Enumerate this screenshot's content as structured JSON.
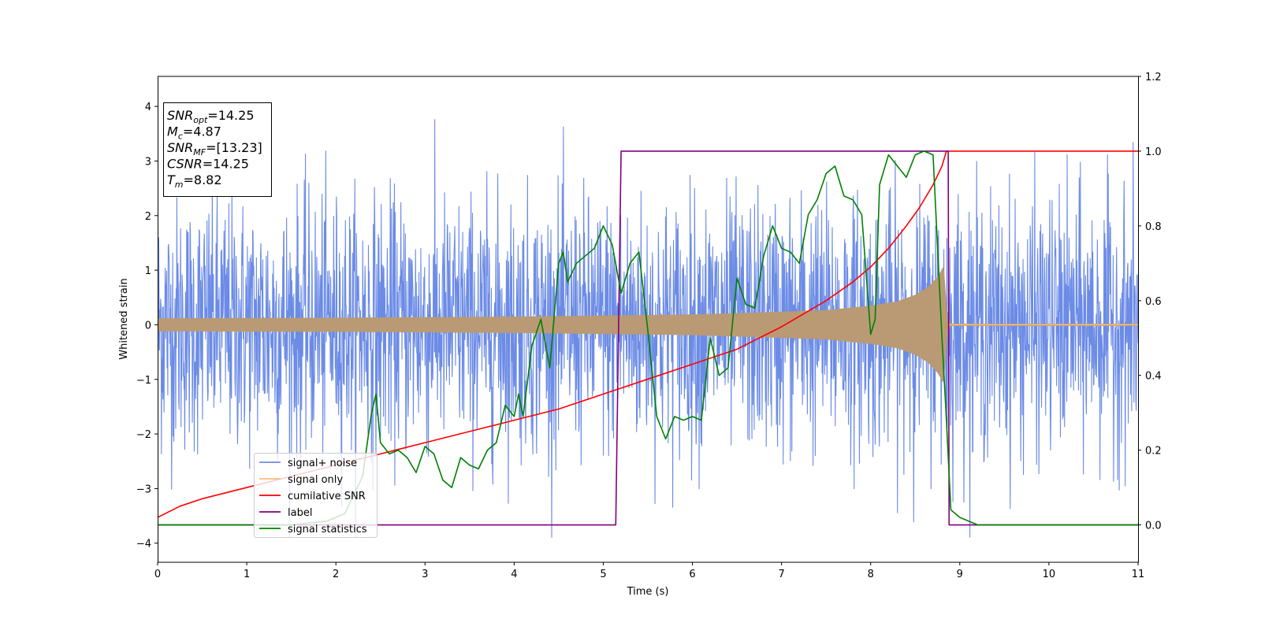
{
  "chart_data": {
    "type": "line",
    "title": "",
    "xlabel": "Time (s)",
    "ylabel": "Whitened strain",
    "xlim": [
      0,
      11
    ],
    "ylim": [
      -4.35,
      4.55
    ],
    "y2lim": [
      -0.1,
      1.2
    ],
    "x_ticks": [
      "0",
      "1",
      "2",
      "3",
      "4",
      "5",
      "6",
      "7",
      "8",
      "9",
      "10",
      "11"
    ],
    "y_ticks": [
      "−4",
      "−3",
      "−2",
      "−1",
      "0",
      "1",
      "2",
      "3",
      "4"
    ],
    "y2_ticks": [
      "0.0",
      "0.2",
      "0.4",
      "0.6",
      "0.8",
      "1.0",
      "1.2"
    ],
    "grid": false,
    "legend_position": "lower-left",
    "info_box": {
      "position": "upper-left",
      "lines": [
        {
          "var": "SNR",
          "sub": "opt",
          "value": "=14.25"
        },
        {
          "var": "M",
          "sub": "c",
          "value": "=4.87"
        },
        {
          "var": "SNR",
          "sub": "MF",
          "value": "=[13.23]"
        },
        {
          "var": "CSNR",
          "sub": "",
          "value": "=14.25"
        },
        {
          "var": "T",
          "sub": "m",
          "value": "=8.82"
        }
      ]
    },
    "series": [
      {
        "name": "signal+ noise",
        "color": "#6b8be6",
        "axis": "left",
        "kind": "noise",
        "amplitude_sigma": 1.0,
        "peak_max": 4.15,
        "peak_min": -3.9
      },
      {
        "name": "signal only",
        "color": "#ffbb78",
        "axis": "left",
        "kind": "chirp",
        "merger_time": 8.82,
        "envelope": {
          "x": [
            0,
            2,
            4,
            6,
            7,
            7.5,
            8,
            8.3,
            8.5,
            8.65,
            8.75,
            8.82,
            8.86,
            8.9,
            11
          ],
          "y": [
            0.12,
            0.13,
            0.15,
            0.19,
            0.24,
            0.27,
            0.35,
            0.43,
            0.55,
            0.7,
            0.88,
            1.08,
            0.2,
            0.02,
            0.02
          ]
        }
      },
      {
        "name": "cumilative SNR",
        "color": "#ff0000",
        "axis": "right",
        "x": [
          0,
          0.25,
          0.5,
          1,
          1.5,
          2,
          2.5,
          3,
          3.5,
          4,
          4.5,
          5,
          5.5,
          6,
          6.5,
          7,
          7.5,
          7.8,
          8,
          8.2,
          8.4,
          8.55,
          8.7,
          8.8,
          8.85,
          9,
          10,
          11
        ],
        "y": [
          0.02,
          0.05,
          0.07,
          0.1,
          0.13,
          0.16,
          0.19,
          0.22,
          0.25,
          0.28,
          0.31,
          0.35,
          0.39,
          0.43,
          0.47,
          0.53,
          0.6,
          0.65,
          0.69,
          0.74,
          0.8,
          0.85,
          0.91,
          0.96,
          1.0,
          1.0,
          1.0,
          1.0
        ]
      },
      {
        "name": "label",
        "color": "#800080",
        "axis": "right",
        "x": [
          0,
          5.14,
          5.2,
          8.87,
          8.88,
          11
        ],
        "y": [
          0,
          0,
          1,
          1,
          0,
          0
        ]
      },
      {
        "name": "signal statistics",
        "color": "#008000",
        "axis": "right",
        "x": [
          0,
          1.5,
          1.9,
          2.1,
          2.3,
          2.4,
          2.45,
          2.5,
          2.6,
          2.7,
          2.8,
          2.9,
          3.0,
          3.1,
          3.2,
          3.3,
          3.4,
          3.5,
          3.6,
          3.7,
          3.8,
          3.9,
          4.0,
          4.05,
          4.1,
          4.2,
          4.3,
          4.4,
          4.5,
          4.55,
          4.6,
          4.7,
          4.8,
          4.9,
          5.0,
          5.1,
          5.2,
          5.3,
          5.4,
          5.5,
          5.6,
          5.7,
          5.8,
          5.9,
          6.0,
          6.1,
          6.2,
          6.3,
          6.4,
          6.5,
          6.6,
          6.7,
          6.8,
          6.9,
          7.0,
          7.1,
          7.2,
          7.3,
          7.4,
          7.5,
          7.6,
          7.7,
          7.8,
          7.9,
          8.0,
          8.05,
          8.1,
          8.2,
          8.3,
          8.4,
          8.5,
          8.6,
          8.7,
          8.8,
          8.85,
          8.9,
          9.0,
          9.2,
          11
        ],
        "y": [
          0.0,
          0.0,
          0.01,
          0.03,
          0.13,
          0.3,
          0.35,
          0.22,
          0.19,
          0.2,
          0.18,
          0.14,
          0.21,
          0.19,
          0.12,
          0.1,
          0.18,
          0.16,
          0.15,
          0.2,
          0.22,
          0.32,
          0.29,
          0.35,
          0.29,
          0.48,
          0.55,
          0.42,
          0.7,
          0.73,
          0.65,
          0.7,
          0.72,
          0.74,
          0.8,
          0.75,
          0.62,
          0.7,
          0.73,
          0.52,
          0.29,
          0.23,
          0.29,
          0.28,
          0.29,
          0.28,
          0.5,
          0.4,
          0.42,
          0.66,
          0.59,
          0.58,
          0.72,
          0.8,
          0.74,
          0.73,
          0.7,
          0.83,
          0.87,
          0.94,
          0.96,
          0.88,
          0.87,
          0.83,
          0.51,
          0.55,
          0.91,
          0.99,
          0.96,
          0.93,
          0.99,
          1.0,
          0.99,
          0.5,
          0.28,
          0.04,
          0.02,
          0.0,
          0.0
        ]
      }
    ]
  }
}
